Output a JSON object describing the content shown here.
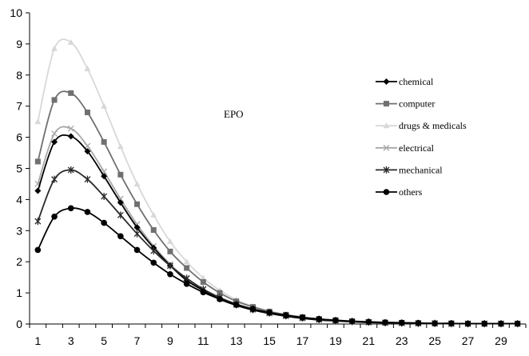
{
  "chart_data": {
    "type": "line",
    "title": "",
    "xlabel": "",
    "ylabel": "",
    "annotation": "EPO",
    "xlim": [
      1,
      30
    ],
    "ylim": [
      0,
      10
    ],
    "x_ticks": [
      1,
      3,
      5,
      7,
      9,
      11,
      13,
      15,
      17,
      19,
      21,
      23,
      25,
      27,
      29
    ],
    "y_ticks": [
      0,
      1,
      2,
      3,
      4,
      5,
      6,
      7,
      8,
      9,
      10
    ],
    "grid": false,
    "legend_position": "right",
    "x": [
      1,
      2,
      3,
      4,
      5,
      6,
      7,
      8,
      9,
      10,
      11,
      12,
      13,
      14,
      15,
      16,
      17,
      18,
      19,
      20,
      21,
      22,
      23,
      24,
      25,
      26,
      27,
      28,
      29,
      30
    ],
    "series": [
      {
        "name": "chemical",
        "color": "#000000",
        "marker": "diamond",
        "values": [
          4.28,
          5.85,
          6.03,
          5.55,
          4.75,
          3.9,
          3.1,
          2.45,
          1.88,
          1.4,
          1.08,
          0.8,
          0.6,
          0.45,
          0.34,
          0.25,
          0.18,
          0.13,
          0.1,
          0.07,
          0.05,
          0.04,
          0.03,
          0.02,
          0.02,
          0.01,
          0.01,
          0.01,
          0.01,
          0.01
        ]
      },
      {
        "name": "computer",
        "color": "#707070",
        "marker": "square",
        "values": [
          5.22,
          7.2,
          7.42,
          6.8,
          5.85,
          4.8,
          3.85,
          3.02,
          2.33,
          1.8,
          1.35,
          1.0,
          0.73,
          0.55,
          0.4,
          0.3,
          0.22,
          0.16,
          0.12,
          0.08,
          0.06,
          0.05,
          0.04,
          0.03,
          0.02,
          0.02,
          0.01,
          0.01,
          0.01,
          0.01
        ]
      },
      {
        "name": "drugs & medicals",
        "color": "#d8d8d8",
        "marker": "triangle",
        "values": [
          6.5,
          8.85,
          9.05,
          8.2,
          7.0,
          5.7,
          4.5,
          3.5,
          2.65,
          2.0,
          1.48,
          1.08,
          0.78,
          0.57,
          0.42,
          0.3,
          0.22,
          0.16,
          0.12,
          0.09,
          0.06,
          0.05,
          0.04,
          0.03,
          0.02,
          0.02,
          0.01,
          0.01,
          0.01,
          0.01
        ]
      },
      {
        "name": "electrical",
        "color": "#a8a8a8",
        "marker": "x",
        "values": [
          4.5,
          6.12,
          6.28,
          5.72,
          4.9,
          4.02,
          3.2,
          2.5,
          1.92,
          1.45,
          1.1,
          0.8,
          0.6,
          0.45,
          0.34,
          0.25,
          0.18,
          0.13,
          0.1,
          0.07,
          0.05,
          0.04,
          0.03,
          0.02,
          0.02,
          0.01,
          0.01,
          0.01,
          0.01,
          0.01
        ]
      },
      {
        "name": "mechanical",
        "color": "#2a2a2a",
        "marker": "asterisk",
        "values": [
          3.3,
          4.65,
          4.95,
          4.65,
          4.1,
          3.5,
          2.9,
          2.35,
          1.87,
          1.47,
          1.12,
          0.85,
          0.64,
          0.48,
          0.36,
          0.27,
          0.2,
          0.15,
          0.11,
          0.08,
          0.06,
          0.04,
          0.03,
          0.02,
          0.02,
          0.01,
          0.01,
          0.01,
          0.01,
          0.01
        ]
      },
      {
        "name": "others",
        "color": "#000000",
        "marker": "circle",
        "values": [
          2.38,
          3.45,
          3.72,
          3.6,
          3.25,
          2.82,
          2.38,
          1.97,
          1.6,
          1.29,
          1.02,
          0.8,
          0.62,
          0.48,
          0.37,
          0.28,
          0.21,
          0.16,
          0.12,
          0.09,
          0.07,
          0.05,
          0.04,
          0.03,
          0.02,
          0.02,
          0.01,
          0.01,
          0.01,
          0.01
        ]
      }
    ]
  }
}
